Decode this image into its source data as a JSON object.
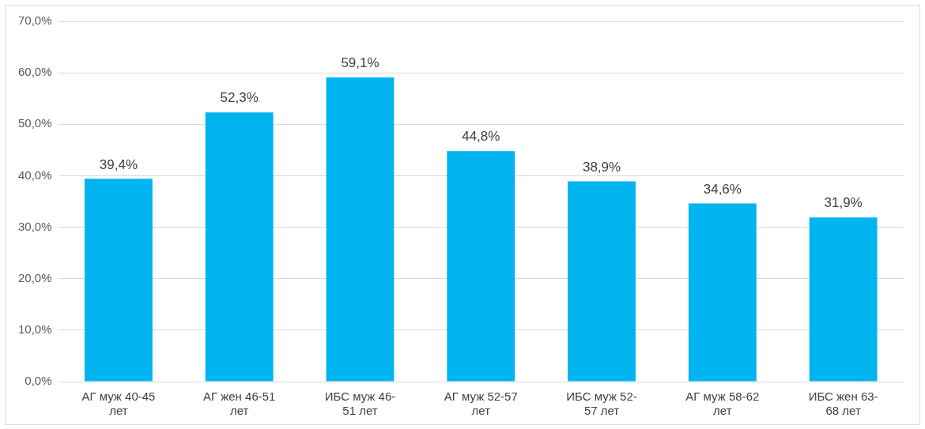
{
  "chart_data": {
    "type": "bar",
    "categories": [
      "АГ муж 40-45 лет",
      "АГ жен 46-51 лет",
      "ИБС муж 46-51 лет",
      "АГ муж 52-57 лет",
      "ИБС муж 52-57 лет",
      "АГ муж 58-62 лет",
      "ИБС жен 63-68 лет"
    ],
    "values": [
      39.4,
      52.3,
      59.1,
      44.8,
      38.9,
      34.6,
      31.9
    ],
    "value_labels": [
      "39,4%",
      "52,3%",
      "59,1%",
      "44,8%",
      "38,9%",
      "34,6%",
      "31,9%"
    ],
    "color": "#00b4f0",
    "ylim": [
      0,
      70
    ],
    "yticks": [
      {
        "value": 0,
        "label": "0,0%"
      },
      {
        "value": 10,
        "label": "10,0%"
      },
      {
        "value": 20,
        "label": "20,0%"
      },
      {
        "value": 30,
        "label": "30,0%"
      },
      {
        "value": 40,
        "label": "40,0%"
      },
      {
        "value": 50,
        "label": "50,0%"
      },
      {
        "value": 60,
        "label": "60,0%"
      },
      {
        "value": 70,
        "label": "70,0%"
      }
    ],
    "grid": "y",
    "legend": false
  }
}
